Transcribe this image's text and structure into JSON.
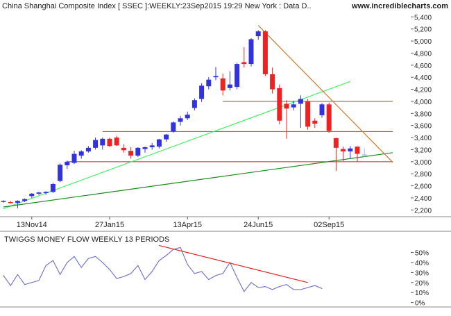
{
  "header": {
    "title": "China Shanghai Composite Index [ SSEC ]:WEEKLY:23Sep2015 19:29 New York : Data D..",
    "site": "www.incrediblecharts.com"
  },
  "colors": {
    "up_candle": "#3333dd",
    "down_candle": "#ee2222",
    "pending_candle": "#a8b8ee",
    "steep_uptrend": "#44ee66",
    "long_uptrend": "#1a8a1a",
    "downtrend": "#cc7a22",
    "resistance": "#7a6a10",
    "support": "#cc2222",
    "twiggs_line": "#7777cc",
    "twiggs_trend": "#dd2222"
  },
  "chart_data": [
    {
      "type": "candlestick",
      "title": "China Shanghai Composite Index [ SSEC ]:WEEKLY:23Sep2015 19:29 New York : Data D..",
      "y_axis": {
        "position": "right",
        "ylim": [
          2100,
          5450
        ],
        "ticks": [
          "2,200",
          "2,400",
          "2,600",
          "2,800",
          "3,000",
          "3,200",
          "3,400",
          "3,600",
          "3,800",
          "4,000",
          "4,200",
          "4,400",
          "4,600",
          "4,800",
          "5,000",
          "5,200",
          "5,400"
        ],
        "tick_values": [
          2200,
          2400,
          2600,
          2800,
          3000,
          3200,
          3400,
          3600,
          3800,
          4000,
          4200,
          4400,
          4600,
          4800,
          5000,
          5200,
          5400
        ]
      },
      "x_axis": {
        "labels": [
          "13Nov14",
          "27Jan15",
          "13Apr15",
          "24Jun15",
          "02Sep15"
        ],
        "label_index": [
          4,
          15,
          26,
          36,
          46
        ],
        "n_slots": 52
      },
      "grid": false,
      "candles": [
        {
          "i": 0,
          "o": 2340,
          "h": 2360,
          "l": 2320,
          "c": 2350
        },
        {
          "i": 1,
          "o": 2330,
          "h": 2350,
          "l": 2310,
          "c": 2320
        },
        {
          "i": 2,
          "o": 2320,
          "h": 2360,
          "l": 2230,
          "c": 2350
        },
        {
          "i": 3,
          "o": 2350,
          "h": 2390,
          "l": 2330,
          "c": 2380
        },
        {
          "i": 4,
          "o": 2430,
          "h": 2480,
          "l": 2400,
          "c": 2470
        },
        {
          "i": 5,
          "o": 2470,
          "h": 2500,
          "l": 2450,
          "c": 2490
        },
        {
          "i": 6,
          "o": 2480,
          "h": 2510,
          "l": 2450,
          "c": 2500
        },
        {
          "i": 7,
          "o": 2500,
          "h": 2650,
          "l": 2480,
          "c": 2630
        },
        {
          "i": 8,
          "o": 2680,
          "h": 2970,
          "l": 2660,
          "c": 2950
        },
        {
          "i": 9,
          "o": 2940,
          "h": 3020,
          "l": 2880,
          "c": 3000
        },
        {
          "i": 10,
          "o": 2980,
          "h": 3180,
          "l": 2960,
          "c": 3130
        },
        {
          "i": 11,
          "o": 3100,
          "h": 3190,
          "l": 3050,
          "c": 3170
        },
        {
          "i": 12,
          "o": 3170,
          "h": 3260,
          "l": 3150,
          "c": 3230
        },
        {
          "i": 13,
          "o": 3230,
          "h": 3400,
          "l": 3200,
          "c": 3360
        },
        {
          "i": 14,
          "o": 3270,
          "h": 3400,
          "l": 3200,
          "c": 3380
        },
        {
          "i": 15,
          "o": 3380,
          "h": 3400,
          "l": 3240,
          "c": 3260
        },
        {
          "i": 16,
          "o": 3400,
          "h": 3430,
          "l": 3260,
          "c": 3270
        },
        {
          "i": 17,
          "o": 3230,
          "h": 3290,
          "l": 3150,
          "c": 3190
        },
        {
          "i": 18,
          "o": 3180,
          "h": 3240,
          "l": 3050,
          "c": 3100
        },
        {
          "i": 19,
          "o": 3100,
          "h": 3240,
          "l": 3080,
          "c": 3230
        },
        {
          "i": 20,
          "o": 3210,
          "h": 3250,
          "l": 3150,
          "c": 3240
        },
        {
          "i": 21,
          "o": 3240,
          "h": 3310,
          "l": 3200,
          "c": 3270
        },
        {
          "i": 22,
          "o": 3250,
          "h": 3380,
          "l": 3220,
          "c": 3370
        },
        {
          "i": 23,
          "o": 3370,
          "h": 3460,
          "l": 3330,
          "c": 3450
        },
        {
          "i": 24,
          "o": 3500,
          "h": 3670,
          "l": 3480,
          "c": 3650
        },
        {
          "i": 25,
          "o": 3660,
          "h": 3760,
          "l": 3600,
          "c": 3720
        },
        {
          "i": 26,
          "o": 3720,
          "h": 3830,
          "l": 3690,
          "c": 3780
        },
        {
          "i": 27,
          "o": 3890,
          "h": 4050,
          "l": 3850,
          "c": 4020
        },
        {
          "i": 28,
          "o": 4040,
          "h": 4300,
          "l": 3990,
          "c": 4260
        },
        {
          "i": 29,
          "o": 4250,
          "h": 4400,
          "l": 4200,
          "c": 4360
        },
        {
          "i": 30,
          "o": 4400,
          "h": 4570,
          "l": 4350,
          "c": 4420
        },
        {
          "i": 31,
          "o": 4380,
          "h": 4460,
          "l": 4100,
          "c": 4180
        },
        {
          "i": 32,
          "o": 4220,
          "h": 4500,
          "l": 4180,
          "c": 4280
        },
        {
          "i": 33,
          "o": 4240,
          "h": 4640,
          "l": 4200,
          "c": 4620
        },
        {
          "i": 34,
          "o": 4650,
          "h": 4900,
          "l": 4560,
          "c": 4620
        },
        {
          "i": 35,
          "o": 4620,
          "h": 5050,
          "l": 4580,
          "c": 5030
        },
        {
          "i": 36,
          "o": 5080,
          "h": 5180,
          "l": 5020,
          "c": 5160
        },
        {
          "i": 37,
          "o": 5160,
          "h": 5180,
          "l": 4420,
          "c": 4450
        },
        {
          "i": 38,
          "o": 4450,
          "h": 4560,
          "l": 4130,
          "c": 4200
        },
        {
          "i": 39,
          "o": 4220,
          "h": 4280,
          "l": 3620,
          "c": 3680
        },
        {
          "i": 40,
          "o": 3960,
          "h": 4020,
          "l": 3380,
          "c": 3880
        },
        {
          "i": 41,
          "o": 3900,
          "h": 4010,
          "l": 3850,
          "c": 3950
        },
        {
          "i": 42,
          "o": 3960,
          "h": 4100,
          "l": 3560,
          "c": 4040
        },
        {
          "i": 43,
          "o": 4000,
          "h": 4040,
          "l": 3530,
          "c": 3580
        },
        {
          "i": 44,
          "o": 3680,
          "h": 3720,
          "l": 3560,
          "c": 3630
        },
        {
          "i": 45,
          "o": 3770,
          "h": 3970,
          "l": 3730,
          "c": 3950
        },
        {
          "i": 46,
          "o": 3950,
          "h": 3980,
          "l": 3480,
          "c": 3510
        },
        {
          "i": 47,
          "o": 3390,
          "h": 3400,
          "l": 2850,
          "c": 3230
        },
        {
          "i": 48,
          "o": 3210,
          "h": 3250,
          "l": 3010,
          "c": 3170
        },
        {
          "i": 49,
          "o": 3170,
          "h": 3260,
          "l": 3050,
          "c": 3220
        },
        {
          "i": 50,
          "o": 3250,
          "h": 3250,
          "l": 3000,
          "c": 3130
        },
        {
          "i": 51,
          "o": 3110,
          "h": 3220,
          "l": 3080,
          "c": 3120,
          "pending": true
        }
      ],
      "horizontal_lines": [
        {
          "value": 3000,
          "from": 9,
          "to": 55,
          "role": "support"
        },
        {
          "value": 3500,
          "from": 14,
          "to": 55,
          "role": "resistance"
        },
        {
          "value": 4000,
          "from": 31,
          "to": 55,
          "role": "resistance"
        }
      ],
      "trendlines": [
        {
          "from": [
            0,
            2220
          ],
          "to": [
            49,
            4330
          ],
          "role": "steep_uptrend"
        },
        {
          "from": [
            0,
            2250
          ],
          "to": [
            55,
            3150
          ],
          "role": "long_uptrend"
        },
        {
          "from": [
            36,
            5260
          ],
          "to": [
            55,
            2990
          ],
          "role": "downtrend"
        }
      ]
    },
    {
      "type": "line",
      "title": "TWIGGS MONEY FLOW WEEKLY 13 PERIODS",
      "y_axis": {
        "position": "right",
        "ylim": [
          -3,
          58
        ],
        "ticks": [
          "0%",
          "10%",
          "20%",
          "30%",
          "40%",
          "50%"
        ],
        "tick_values": [
          0,
          10,
          20,
          30,
          40,
          50
        ]
      },
      "series": [
        {
          "values": [
            27,
            17,
            28,
            18,
            20,
            22,
            37,
            42,
            28,
            40,
            46,
            35,
            44,
            46,
            40,
            33,
            24,
            26,
            29,
            37,
            23,
            31,
            42,
            47,
            53,
            55,
            38,
            29,
            31,
            23,
            27,
            29,
            40,
            25,
            11,
            20,
            15,
            16,
            13,
            16,
            18,
            13,
            13,
            15,
            17,
            14
          ]
        }
      ],
      "trendline": {
        "from": [
          22,
          57
        ],
        "to": [
          43,
          20
        ],
        "role": "twiggs_trend"
      }
    }
  ]
}
